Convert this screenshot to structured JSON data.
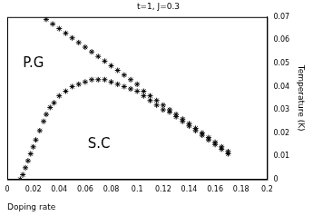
{
  "chart_data": {
    "type": "scatter",
    "title": "t=1, J=0.3",
    "x_label": "Doping rate",
    "y_label": "Temperature (K)",
    "xlim": [
      0,
      0.2
    ],
    "xticks": [
      0,
      0.02,
      0.04,
      0.06,
      0.08,
      0.1,
      0.12,
      0.14,
      0.16,
      0.18,
      0.2
    ],
    "ylim": [
      0,
      0.07
    ],
    "yticks": [
      0,
      0.01,
      0.02,
      0.03,
      0.04,
      0.05,
      0.06,
      0.07
    ],
    "grid": false,
    "color": "#000000",
    "marker": "star",
    "annotations": [
      {
        "text": "P.G",
        "x": 0.012,
        "y": 0.05
      },
      {
        "text": "S.C",
        "x": 0.062,
        "y": 0.015
      }
    ],
    "series": [
      {
        "color": "#000000",
        "marker": "star",
        "x": [
          0.03,
          0.035,
          0.04,
          0.045,
          0.05,
          0.055,
          0.06,
          0.065,
          0.07,
          0.075,
          0.08,
          0.085,
          0.09,
          0.095,
          0.1,
          0.105,
          0.11,
          0.115,
          0.12,
          0.125,
          0.13,
          0.135,
          0.14,
          0.145,
          0.15,
          0.155,
          0.16,
          0.165,
          0.17
        ],
        "values": [
          0.069,
          0.067,
          0.065,
          0.063,
          0.061,
          0.059,
          0.057,
          0.055,
          0.053,
          0.051,
          0.049,
          0.047,
          0.045,
          0.043,
          0.041,
          0.038,
          0.036,
          0.034,
          0.032,
          0.03,
          0.028,
          0.026,
          0.024,
          0.022,
          0.02,
          0.018,
          0.016,
          0.014,
          0.012
        ]
      },
      {
        "color": "#000000",
        "marker": "star",
        "x": [
          0.01,
          0.012,
          0.014,
          0.016,
          0.018,
          0.02,
          0.022,
          0.025,
          0.028,
          0.03,
          0.033,
          0.036,
          0.04,
          0.045,
          0.05,
          0.055,
          0.06,
          0.065,
          0.07,
          0.075,
          0.08,
          0.085,
          0.09,
          0.095,
          0.1,
          0.105,
          0.11,
          0.115,
          0.12,
          0.125,
          0.13,
          0.135,
          0.14,
          0.145,
          0.15,
          0.155,
          0.16,
          0.165,
          0.17
        ],
        "values": [
          0.0,
          0.002,
          0.005,
          0.008,
          0.011,
          0.014,
          0.017,
          0.021,
          0.025,
          0.028,
          0.031,
          0.033,
          0.036,
          0.038,
          0.04,
          0.041,
          0.042,
          0.043,
          0.043,
          0.043,
          0.042,
          0.041,
          0.04,
          0.039,
          0.038,
          0.036,
          0.034,
          0.032,
          0.03,
          0.029,
          0.027,
          0.025,
          0.023,
          0.021,
          0.019,
          0.017,
          0.015,
          0.013,
          0.011
        ]
      }
    ]
  }
}
